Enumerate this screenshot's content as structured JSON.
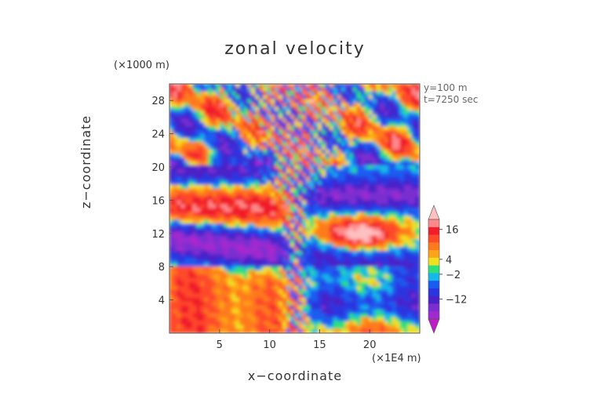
{
  "chart_data": {
    "type": "heatmap",
    "title": "zonal velocity",
    "xlabel": "x−coordinate",
    "ylabel": "z−coordinate",
    "x_unit": "(×1E4 m)",
    "y_unit": "(×1000 m)",
    "xlim": [
      0,
      25
    ],
    "ylim": [
      0,
      30
    ],
    "x_ticks": [
      5,
      10,
      15,
      20
    ],
    "y_ticks": [
      4,
      8,
      12,
      16,
      20,
      24,
      28
    ],
    "annotations": [
      "y=100 m",
      "t=7250 sec"
    ],
    "colorbar": {
      "tick_labels": [
        "16",
        "4",
        "−2",
        "−12"
      ],
      "tick_values": [
        16,
        4,
        -2,
        -12
      ],
      "extend": "both",
      "colors": [
        "#c01cc8",
        "#a02ad0",
        "#7a2ed0",
        "#4a22c8",
        "#2a36e0",
        "#1a5cf0",
        "#16b8e8",
        "#2ee07a",
        "#f0e020",
        "#ffa418",
        "#ff7a1e",
        "#ff4a2a",
        "#f01e2c",
        "#ff8888",
        "#ffc0c0"
      ]
    }
  }
}
